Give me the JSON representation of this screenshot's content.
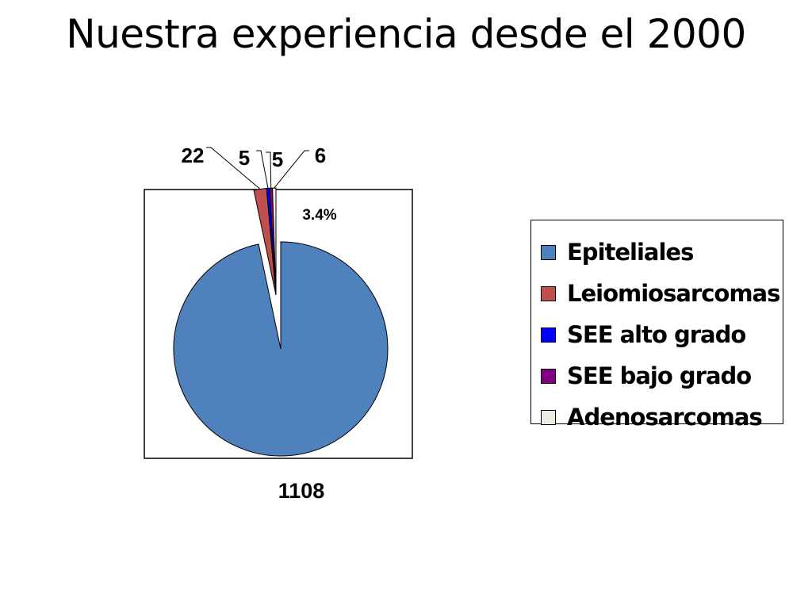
{
  "slide": {
    "title": "Nuestra experiencia desde el 2000"
  },
  "chart_data": {
    "type": "pie",
    "title": "",
    "categories": [
      "Epiteliales",
      "Leiomiosarcomas",
      "SEE alto grado",
      "SEE bajo grado",
      "Adenosarcomas"
    ],
    "values": [
      1108,
      22,
      5,
      5,
      6
    ],
    "value_labels": [
      "1108",
      "22",
      "5",
      "5",
      "6"
    ],
    "colors": [
      "#4F81BD",
      "#C0504D",
      "#0000FF",
      "#800080",
      "#EEECE1"
    ],
    "annotation": "3.4%",
    "exploded_segment": "Epiteliales",
    "legend_position": "right"
  }
}
